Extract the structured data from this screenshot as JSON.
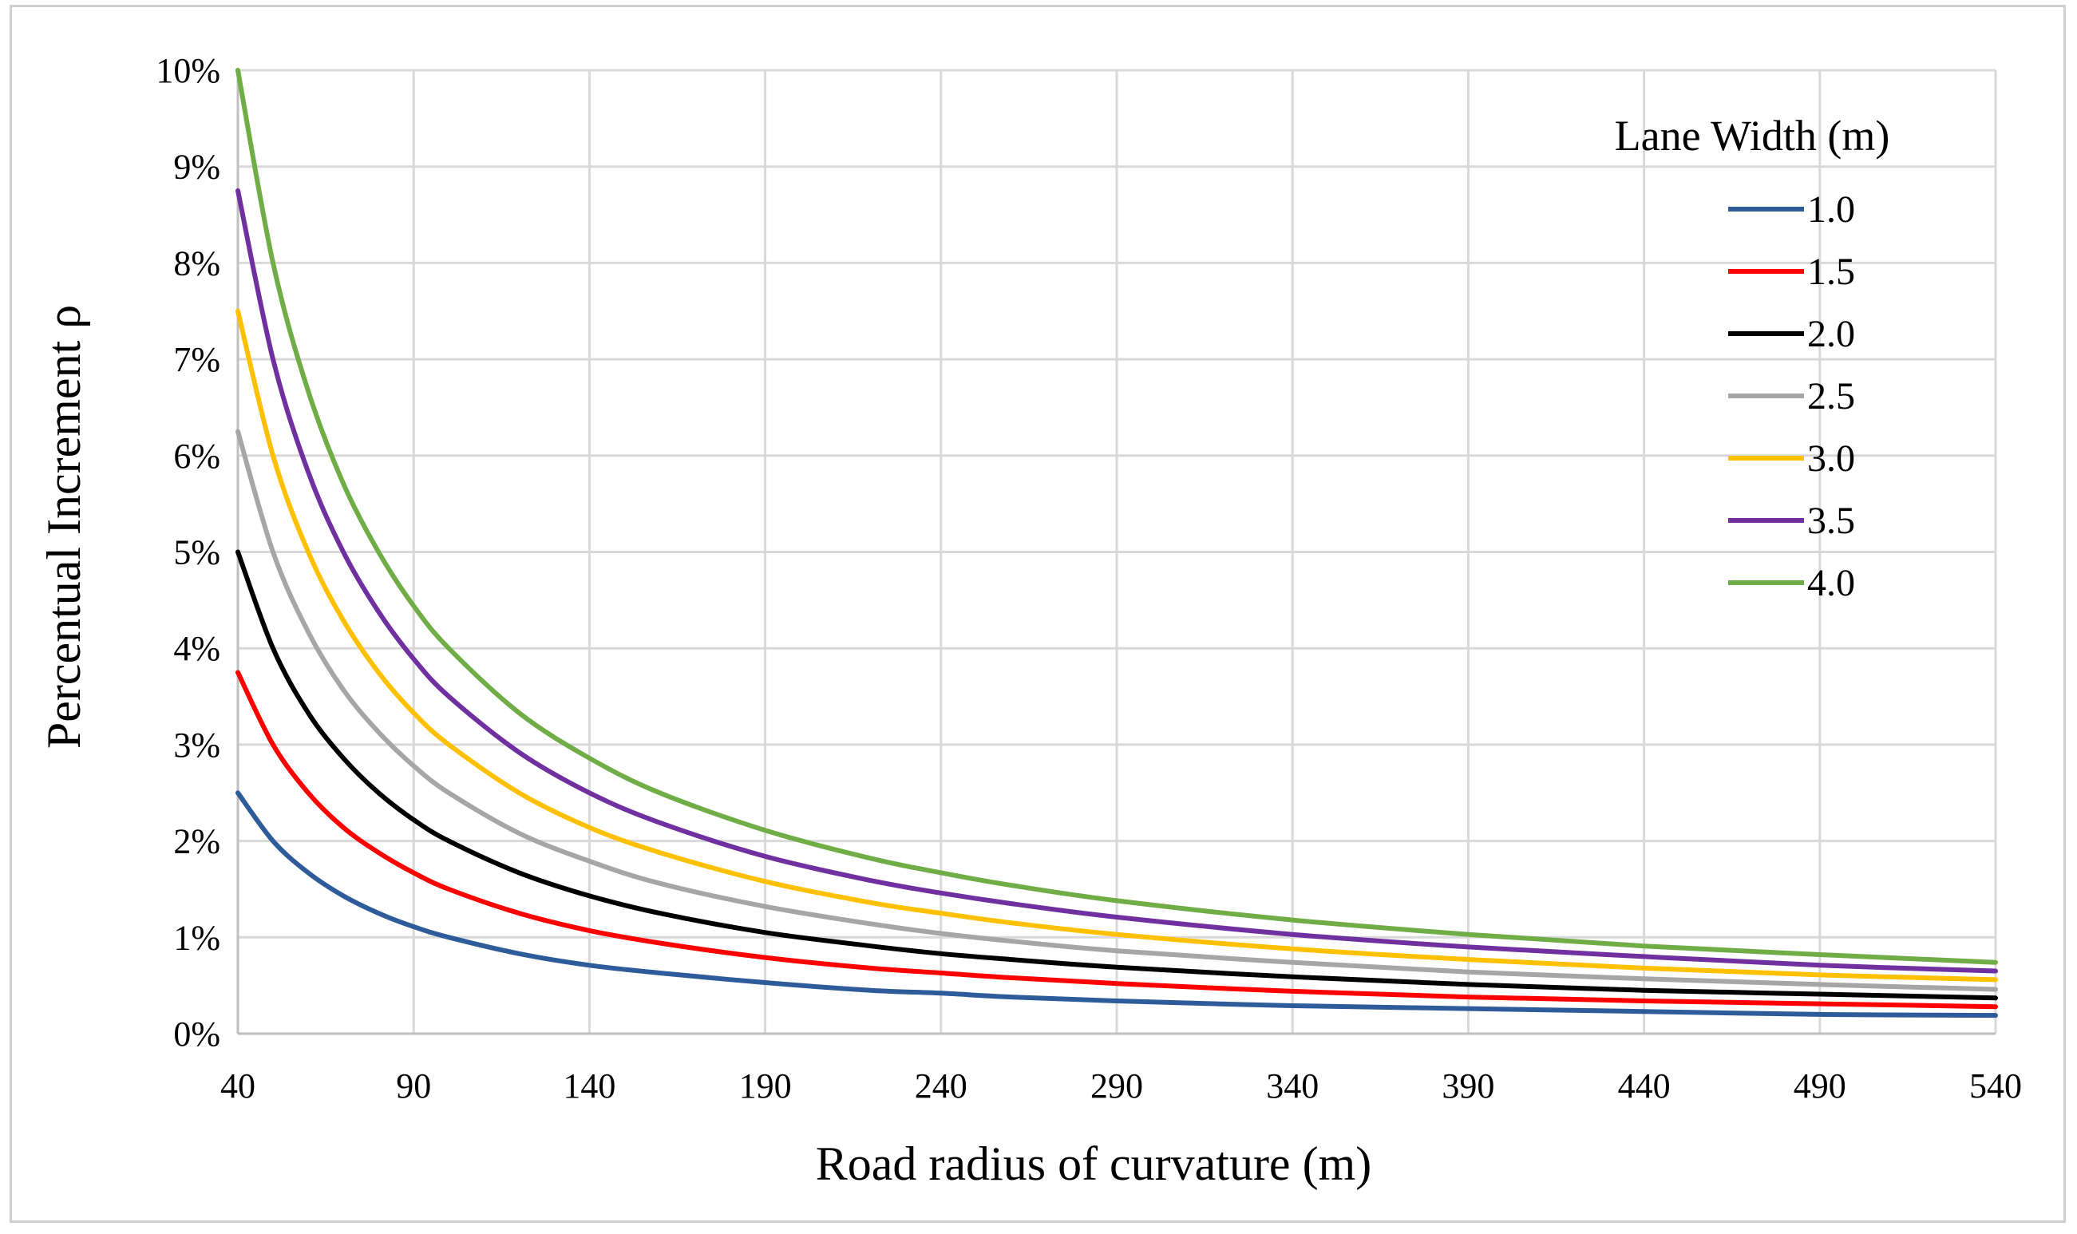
{
  "chart_data": {
    "type": "line",
    "title": "",
    "xlabel": "Road radius of curvature (m)",
    "ylabel": "Percentual Increment ρ",
    "xlim": [
      40,
      540
    ],
    "ylim": [
      0,
      10
    ],
    "x_ticks": [
      40,
      90,
      140,
      190,
      240,
      290,
      340,
      390,
      440,
      490,
      540
    ],
    "x_tick_labels": [
      "40",
      "90",
      "140",
      "190",
      "240",
      "290",
      "340",
      "390",
      "440",
      "490",
      "540"
    ],
    "y_ticks": [
      0,
      1,
      2,
      3,
      4,
      5,
      6,
      7,
      8,
      9,
      10
    ],
    "y_tick_labels": [
      "0%",
      "1%",
      "2%",
      "3%",
      "4%",
      "5%",
      "6%",
      "7%",
      "8%",
      "9%",
      "10%"
    ],
    "grid": true,
    "legend": {
      "title": "Lane Width (m)",
      "placement": "top-right"
    },
    "x": [
      40,
      50,
      60,
      70,
      80,
      90,
      100,
      120,
      140,
      160,
      190,
      220,
      240,
      260,
      290,
      340,
      390,
      440,
      490,
      540
    ],
    "series": [
      {
        "name": "1.0",
        "color": "#2e5c9a",
        "values": [
          2.5,
          2.0,
          1.67,
          1.43,
          1.25,
          1.11,
          1.0,
          0.83,
          0.71,
          0.63,
          0.53,
          0.45,
          0.42,
          0.38,
          0.34,
          0.29,
          0.26,
          0.23,
          0.2,
          0.19
        ]
      },
      {
        "name": "1.5",
        "color": "#ff0000",
        "values": [
          3.75,
          3.0,
          2.5,
          2.14,
          1.88,
          1.67,
          1.5,
          1.25,
          1.07,
          0.94,
          0.79,
          0.68,
          0.63,
          0.58,
          0.52,
          0.44,
          0.38,
          0.34,
          0.31,
          0.28
        ]
      },
      {
        "name": "2.0",
        "color": "#000000",
        "values": [
          5.0,
          4.0,
          3.33,
          2.86,
          2.5,
          2.22,
          2.0,
          1.67,
          1.43,
          1.25,
          1.05,
          0.91,
          0.83,
          0.77,
          0.69,
          0.59,
          0.51,
          0.45,
          0.41,
          0.37
        ]
      },
      {
        "name": "2.5",
        "color": "#a6a6a6",
        "values": [
          6.25,
          5.0,
          4.17,
          3.57,
          3.13,
          2.78,
          2.5,
          2.08,
          1.79,
          1.56,
          1.32,
          1.14,
          1.04,
          0.96,
          0.86,
          0.74,
          0.64,
          0.57,
          0.51,
          0.46
        ]
      },
      {
        "name": "3.0",
        "color": "#ffc000",
        "values": [
          7.5,
          6.0,
          5.0,
          4.29,
          3.75,
          3.33,
          3.0,
          2.5,
          2.14,
          1.88,
          1.58,
          1.36,
          1.25,
          1.15,
          1.03,
          0.88,
          0.77,
          0.68,
          0.61,
          0.56
        ]
      },
      {
        "name": "3.5",
        "color": "#7030a0",
        "values": [
          8.75,
          7.0,
          5.83,
          5.0,
          4.38,
          3.89,
          3.5,
          2.92,
          2.5,
          2.19,
          1.84,
          1.59,
          1.46,
          1.35,
          1.21,
          1.03,
          0.9,
          0.8,
          0.71,
          0.65
        ]
      },
      {
        "name": "4.0",
        "color": "#70ad47",
        "values": [
          10.0,
          8.0,
          6.67,
          5.71,
          5.0,
          4.44,
          4.0,
          3.33,
          2.86,
          2.5,
          2.11,
          1.82,
          1.67,
          1.54,
          1.38,
          1.18,
          1.03,
          0.91,
          0.82,
          0.74
        ]
      }
    ]
  }
}
